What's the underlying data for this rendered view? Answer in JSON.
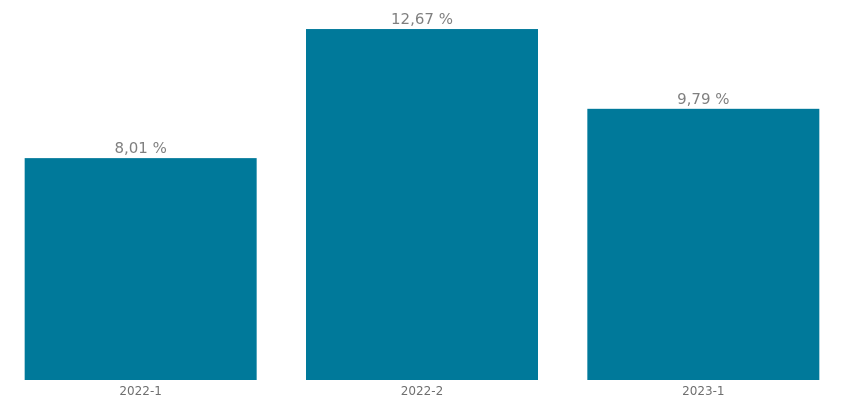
{
  "chart_data": {
    "type": "bar",
    "categories": [
      "2022-1",
      "2022-2",
      "2023-1"
    ],
    "values": [
      8.01,
      12.67,
      9.79
    ],
    "value_labels": [
      "8,01 %",
      "12,67 %",
      "9,79 %"
    ],
    "title": "",
    "xlabel": "",
    "ylabel": "",
    "ylim": [
      0,
      14
    ],
    "grid": false,
    "legend": "none",
    "bar_color": "#00799a"
  }
}
